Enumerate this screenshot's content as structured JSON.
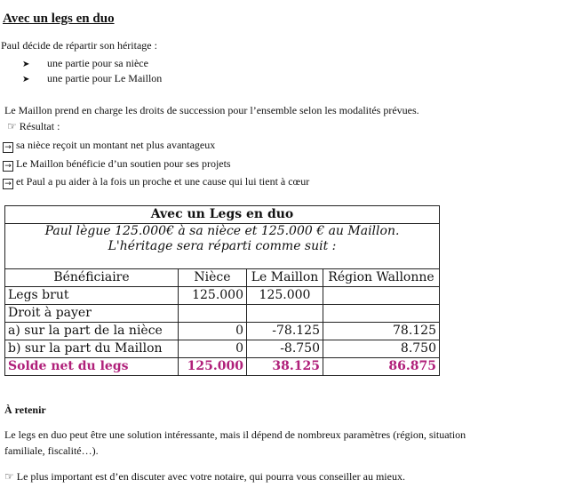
{
  "title": "Avec un legs en duo",
  "intro": "Paul décide de répartir son héritage :",
  "bullets": [
    "une partie pour sa nièce",
    "une partie pour Le Maillon"
  ],
  "statement": "Le Maillon prend en charge les droits de succession pour l’ensemble selon les modalités prévues.",
  "result_label": "Résultat :",
  "results": [
    "sa nièce reçoit un montant net plus avantageux",
    "Le Maillon bénéficie d’un soutien pour ses projets",
    "et Paul a pu aider à la fois un proche et une cause qui lui tient à cœur"
  ],
  "icons": {
    "bullet": "arrowhead-bullet-icon",
    "hand": "pointing-hand-icon",
    "arrow": "boxed-right-arrow-icon"
  },
  "table": {
    "caption": "Avec un Legs en duo",
    "intro_line1": "Paul lègue 125.000€ à sa nièce et 125.000 € au Maillon.",
    "intro_line2": "L'héritage sera réparti comme suit :",
    "headers": [
      "Bénéficiaire",
      "Nièce",
      "Le Maillon",
      "Région Wallonne"
    ],
    "rows": [
      [
        "Legs brut",
        "125.000",
        "125.000",
        ""
      ],
      [
        "Droit à payer",
        "",
        "",
        ""
      ],
      [
        "a) sur la part de la nièce",
        "0",
        "-78.125",
        "78.125"
      ],
      [
        "b) sur la part du Maillon",
        "0",
        "-8.750",
        "8.750"
      ]
    ],
    "total": [
      "Solde net du legs",
      "125.000",
      "38.125",
      "86.875"
    ],
    "total_color": "#b0207a"
  },
  "retenir": {
    "heading": "À retenir",
    "para_line1": "Le legs en duo peut être une solution intéressante, mais il dépend de nombreux paramètres (région, situation",
    "para_line2": "familiale, fiscalité…).",
    "advice": "Le plus important est d’en discuter avec votre notaire, qui pourra vous conseiller au mieux."
  }
}
